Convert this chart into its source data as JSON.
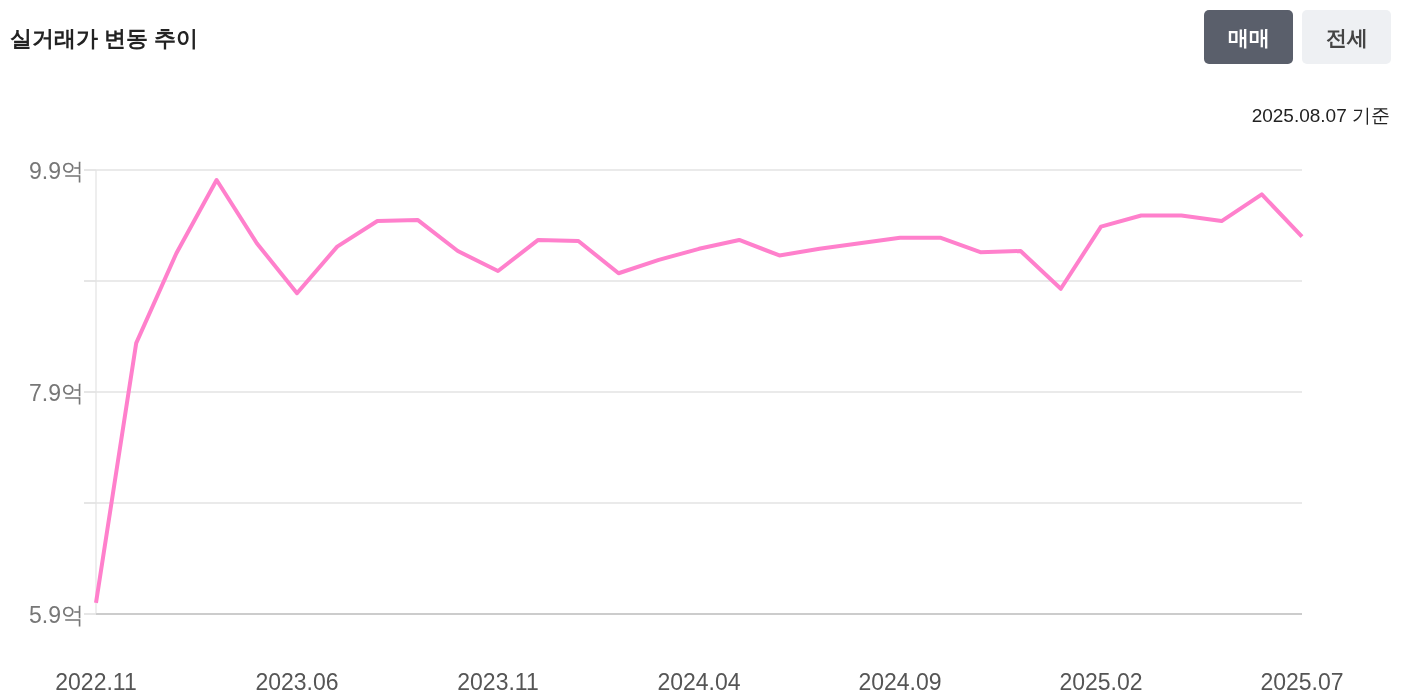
{
  "chart_data": {
    "type": "line",
    "title": "실거래가 변동 추이",
    "annotations": [
      "매매",
      "전세",
      "2025.08.07 기준"
    ],
    "categories": [
      "2022.11",
      null,
      null,
      null,
      null,
      "2023.06",
      null,
      null,
      null,
      null,
      "2023.11",
      null,
      null,
      null,
      null,
      "2024.04",
      null,
      null,
      null,
      null,
      "2024.09",
      null,
      null,
      null,
      null,
      "2025.02",
      null,
      null,
      null,
      null,
      "2025.07"
    ],
    "series": [
      {
        "color": "#ff80cc",
        "values": [
          6.0,
          8.34,
          9.15,
          9.81,
          9.24,
          8.79,
          9.21,
          9.44,
          9.45,
          9.17,
          8.99,
          9.27,
          9.26,
          8.97,
          9.09,
          9.19,
          9.27,
          9.13,
          9.19,
          9.24,
          9.29,
          9.29,
          9.16,
          9.17,
          8.83,
          9.39,
          9.49,
          9.49,
          9.44,
          9.68,
          9.3
        ]
      }
    ],
    "ylim": [
      5.9,
      9.9
    ],
    "yticks": [
      {
        "value": 5.9,
        "label": "5.9억"
      },
      {
        "value": 6.9,
        "label": null
      },
      {
        "value": 7.9,
        "label": "7.9억"
      },
      {
        "value": 8.9,
        "label": null
      },
      {
        "value": 9.9,
        "label": "9.9억"
      }
    ],
    "grid": "y",
    "marker": "none",
    "line_style": "solid"
  }
}
